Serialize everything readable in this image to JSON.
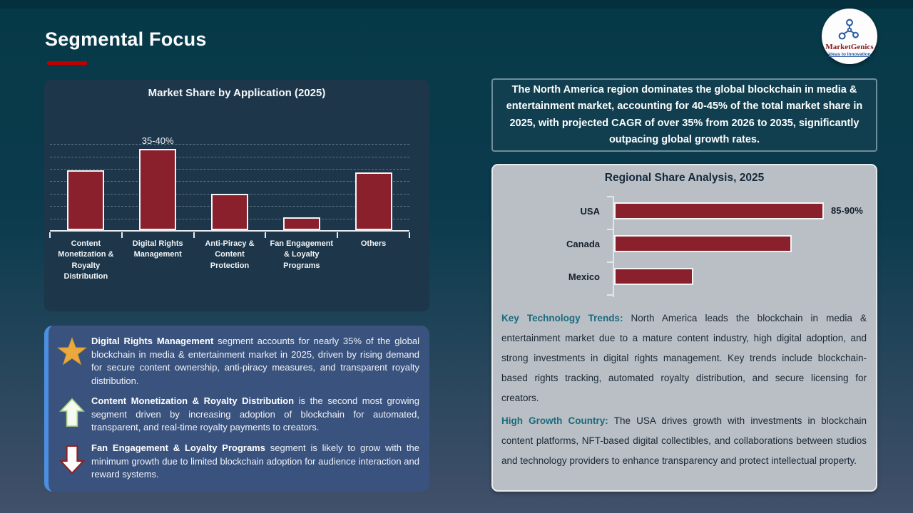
{
  "slide": {
    "title": "Segmental Focus"
  },
  "logo": {
    "brand": "MarketGenics",
    "tagline": "Ideas to Innovation"
  },
  "colors": {
    "accent_red": "#C00000",
    "bar_maroon": "#8B202D",
    "teal_lead": "#1A6B7D",
    "insight_box_blue": "#3A537E",
    "insight_accent_blue": "#4C8FE0",
    "gray_card": "#B9BFC5",
    "navy_chart_card": "#1D3649",
    "na_box_teal": "#123F50"
  },
  "chart_data": [
    {
      "type": "bar",
      "title": "Market Share by Application (2025)",
      "categories": [
        "Content Monetization & Royalty Distribution",
        "Digital Rights Management",
        "Anti-Piracy & Content Protection",
        "Fan Engagement & Loyalty Programs",
        "Others"
      ],
      "values": [
        28,
        38,
        17,
        6,
        27
      ],
      "data_labels": [
        "",
        "35-40%",
        "",
        "",
        ""
      ],
      "ylim": [
        0,
        40
      ],
      "grid": "horizontal-dashed",
      "legend": "none"
    },
    {
      "type": "bar",
      "orientation": "horizontal",
      "title": "Regional Share Analysis, 2025",
      "categories": [
        "USA",
        "Canada",
        "Mexico"
      ],
      "values": [
        87.5,
        74,
        33
      ],
      "data_labels": [
        "85-90%",
        "",
        ""
      ],
      "xlim": [
        0,
        100
      ],
      "grid": "off",
      "legend": "none"
    }
  ],
  "na_summary": "The North America region dominates the global blockchain in media & entertainment market, accounting for 40-45% of the total market share in 2025, with projected CAGR of over 35% from 2026 to 2035, significantly outpacing global growth rates.",
  "insights": [
    {
      "icon": "star",
      "lead": "Digital Rights Management",
      "text": " segment accounts for nearly 35% of the global blockchain in media & entertainment market in 2025, driven by rising demand for secure content ownership, anti-piracy measures, and transparent royalty distribution."
    },
    {
      "icon": "up-arrow",
      "lead": "Content Monetization & Royalty Distribution",
      "text": " is the second most growing segment driven by increasing adoption of blockchain for automated, transparent, and real-time royalty payments to creators."
    },
    {
      "icon": "down-arrow",
      "lead": "Fan Engagement & Loyalty Programs",
      "text": " segment is likely to grow with the minimum growth due to limited blockchain adoption for audience interaction and reward systems."
    }
  ],
  "regional_notes": [
    {
      "lead": "Key Technology Trends:",
      "text": " North America leads the blockchain in media & entertainment market due to a mature content industry, high digital adoption, and strong investments in digital rights management. Key trends include blockchain-based rights tracking, automated royalty distribution, and secure licensing for creators."
    },
    {
      "lead": "High Growth Country:",
      "text": " The USA drives growth with investments in blockchain content platforms, NFT-based digital collectibles, and collaborations between studios and technology providers to enhance transparency and protect intellectual property."
    }
  ]
}
